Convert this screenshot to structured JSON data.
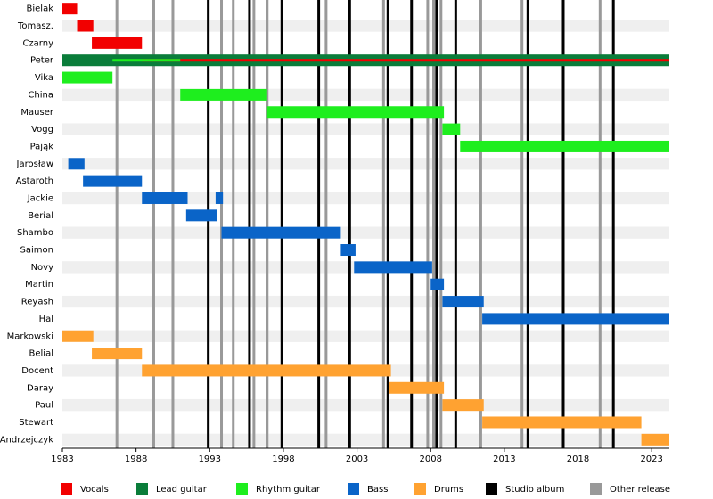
{
  "chart_data": {
    "type": "timeline",
    "categories": [
      "Bielak",
      "Tomasz.",
      "Czarny",
      "Peter",
      "Vika",
      "China",
      "Mauser",
      "Vogg",
      "Pająk",
      "Jarosław",
      "Astaroth",
      "Jackie",
      "Berial",
      "Shambo",
      "Saimon",
      "Novy",
      "Martin",
      "Reyash",
      "Hal",
      "Markowski",
      "Belial",
      "Docent",
      "Daray",
      "Paul",
      "Stewart",
      "Andrzejczyk"
    ],
    "xlim": [
      1983,
      2024.2
    ],
    "xticks": [
      1983,
      1988,
      1993,
      1998,
      2003,
      2008,
      2013,
      2018,
      2023
    ],
    "series": [
      {
        "name": "Vocals",
        "color": "#f20000",
        "values": [
          [
            [
              1983.0,
              1984.0
            ]
          ],
          [
            [
              1984.0,
              1985.1
            ]
          ],
          [
            [
              1985.0,
              1988.4
            ]
          ],
          [
            [
              1988.4,
              2024.2
            ]
          ],
          [],
          [],
          [],
          [],
          [],
          [],
          [],
          [],
          [],
          [],
          [],
          [],
          [],
          [],
          [],
          [],
          [],
          [],
          [],
          [],
          [],
          []
        ]
      },
      {
        "name": "Lead guitar",
        "color": "#0a7d3a",
        "values": [
          [],
          [],
          [],
          [
            [
              1983.0,
              2024.2
            ]
          ],
          [],
          [],
          [],
          [],
          [],
          [],
          [],
          [],
          [],
          [],
          [],
          [],
          [],
          [],
          [],
          [],
          [],
          [],
          [],
          [],
          [],
          []
        ]
      },
      {
        "name": "Rhythm guitar",
        "color": "#1eee1e",
        "values": [
          [],
          [],
          [],
          [
            [
              1986.4,
              1991.0
            ]
          ],
          [
            [
              1983.0,
              1986.4
            ]
          ],
          [
            [
              1991.0,
              1996.9
            ]
          ],
          [
            [
              1996.9,
              2008.9
            ]
          ],
          [
            [
              2008.8,
              2010.0
            ]
          ],
          [
            [
              2010.0,
              2024.2
            ]
          ],
          [],
          [],
          [],
          [],
          [],
          [],
          [],
          [],
          [],
          [],
          [],
          [],
          [],
          [],
          [],
          [],
          []
        ]
      },
      {
        "name": "Bass",
        "color": "#0a64c8",
        "values": [
          [],
          [],
          [],
          [],
          [],
          [],
          [],
          [],
          [],
          [
            [
              1983.4,
              1984.5
            ]
          ],
          [
            [
              1984.4,
              1988.4
            ]
          ],
          [
            [
              1988.4,
              1991.5
            ],
            [
              1993.4,
              1993.9
            ]
          ],
          [
            [
              1991.4,
              1993.5
            ]
          ],
          [
            [
              1993.8,
              2001.9
            ]
          ],
          [
            [
              2001.9,
              2002.9
            ]
          ],
          [
            [
              2002.8,
              2008.1
            ]
          ],
          [
            [
              2008.0,
              2008.9
            ]
          ],
          [
            [
              2008.8,
              2011.6
            ]
          ],
          [
            [
              2011.5,
              2024.2
            ]
          ],
          [],
          [],
          [],
          [],
          [],
          [],
          []
        ]
      },
      {
        "name": "Drums",
        "color": "#ffa231",
        "values": [
          [],
          [],
          [],
          [],
          [],
          [],
          [],
          [],
          [],
          [],
          [],
          [],
          [],
          [],
          [],
          [],
          [],
          [],
          [],
          [
            [
              1983.0,
              1985.1
            ]
          ],
          [
            [
              1985.0,
              1988.4
            ]
          ],
          [
            [
              1988.4,
              2005.3
            ]
          ],
          [
            [
              2005.2,
              2008.9
            ]
          ],
          [
            [
              2008.8,
              2011.6
            ]
          ],
          [
            [
              2011.5,
              2022.3
            ]
          ],
          [
            [
              2022.3,
              2024.2
            ]
          ]
        ]
      }
    ],
    "events": [
      {
        "name": "Studio album",
        "color": "#000000",
        "x": [
          1992.9,
          1995.7,
          1997.9,
          2000.4,
          2002.5,
          2005.1,
          2006.7,
          2008.4,
          2009.7,
          2014.6,
          2017.0,
          2020.4
        ]
      },
      {
        "name": "Other release",
        "color": "#999999",
        "x": [
          1986.7,
          1989.2,
          1990.5,
          1993.8,
          1994.6,
          1996.0,
          1996.9,
          2000.9,
          2004.8,
          2007.8,
          2008.2,
          2008.7,
          2011.4,
          2014.2,
          2019.5
        ]
      }
    ]
  }
}
